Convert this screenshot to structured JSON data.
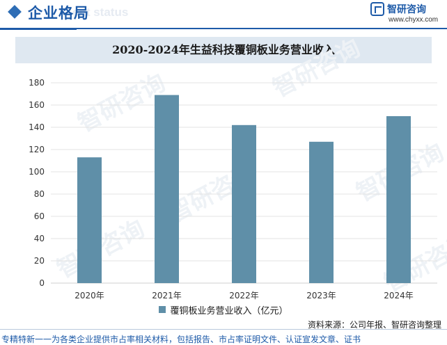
{
  "header": {
    "section_title": "企业格局",
    "section_title_en": "ent status",
    "brand_name": "智研咨询",
    "brand_url": "www.chyxx.com"
  },
  "colors": {
    "accent": "#1d5aa8",
    "bar": "#5f8fa8",
    "title_band": "#dfe8f1"
  },
  "chart_data": {
    "type": "bar",
    "title": "2020-2024年生益科技覆铜板业务营业收入",
    "categories": [
      "2020年",
      "2021年",
      "2022年",
      "2023年",
      "2024年"
    ],
    "series": [
      {
        "name": "覆铜板业务营业收入（亿元）",
        "values": [
          113,
          169,
          142,
          127,
          150
        ]
      }
    ],
    "yticks": [
      0,
      20,
      40,
      60,
      80,
      100,
      120,
      140,
      160,
      180
    ],
    "ylim": [
      0,
      180
    ],
    "grid": true,
    "legend": "bottom"
  },
  "footer": {
    "source": "资料来源：公司年报、智研咨询整理",
    "tagline": "专精特新一一为各类企业提供市占率相关材料，包括报告、市占率证明文件、认证宣发文章、证书"
  }
}
